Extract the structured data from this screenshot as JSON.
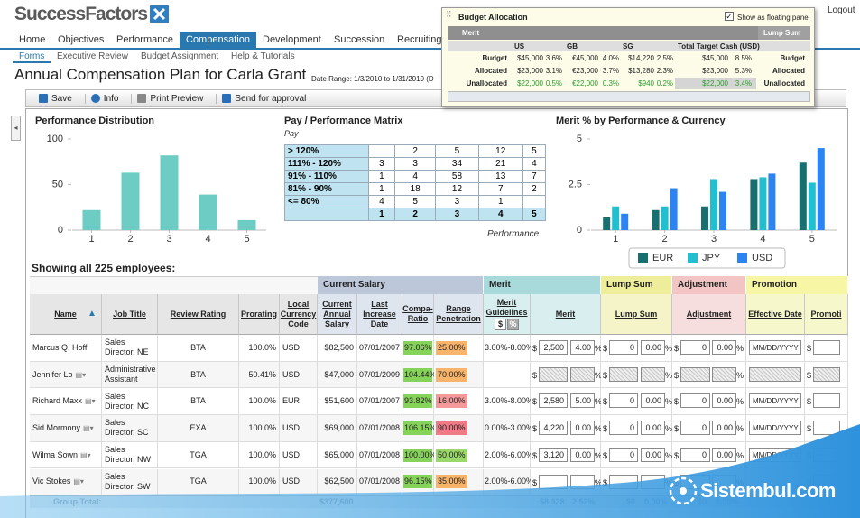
{
  "header": {
    "logo": "SuccessFactors",
    "logout": "Logout"
  },
  "nav": [
    {
      "label": "Home"
    },
    {
      "label": "Objectives"
    },
    {
      "label": "Performance"
    },
    {
      "label": "Compensation",
      "active": true
    },
    {
      "label": "Development"
    },
    {
      "label": "Succession"
    },
    {
      "label": "Recruiting"
    }
  ],
  "subnav": [
    {
      "label": "Forms",
      "active": true
    },
    {
      "label": "Executive Review"
    },
    {
      "label": "Budget Assignment"
    },
    {
      "label": "Help & Tutorials"
    }
  ],
  "page": {
    "title": "Annual Compensation Plan for Carla Grant",
    "date_range": "Date Range: 1/3/2010 to 1/31/2010 (D"
  },
  "toolbar": [
    "Save",
    "Info",
    "Print Preview",
    "Send for approval"
  ],
  "budget_panel": {
    "title": "Budget Allocation",
    "floating_label": "Show as floating panel",
    "section": "Merit",
    "lump_section": "Lump Sum",
    "columns": [
      "US",
      "GB",
      "SG",
      "Total Target Cash (USD)"
    ],
    "rows": [
      {
        "label": "Budget",
        "cells": [
          "$45,000",
          "3.6%",
          "€45,000",
          "4.0%",
          "$14,220",
          "2.5%",
          "$45,000",
          "8.5%"
        ],
        "lump": "Budget"
      },
      {
        "label": "Allocated",
        "cells": [
          "$23,000",
          "3.1%",
          "€23,000",
          "3.7%",
          "$13,280",
          "2.3%",
          "$23,000",
          "5.3%"
        ],
        "lump": "Allocated"
      },
      {
        "label": "Unallocated",
        "cells": [
          "$22,000",
          "0.5%",
          "€22,000",
          "0.3%",
          "$940",
          "0.2%",
          "$22,000",
          "3.4%"
        ],
        "lump": "Unallocated",
        "color": "#2a9a2a"
      }
    ]
  },
  "chart_data": [
    {
      "type": "bar",
      "title": "Performance Distribution",
      "categories": [
        "1",
        "2",
        "3",
        "4",
        "5"
      ],
      "values": [
        22,
        63,
        82,
        39,
        11
      ],
      "color": "#6dcdc5",
      "ylim": [
        0,
        100
      ],
      "yticks": [
        0,
        50,
        100
      ]
    },
    {
      "type": "grouped_bar",
      "title": "Merit % by Performance & Currency",
      "categories": [
        "1",
        "2",
        "3",
        "4",
        "5"
      ],
      "ylim": [
        0,
        5
      ],
      "yticks": [
        0,
        2.5,
        5
      ],
      "series": [
        {
          "name": "EUR",
          "color": "#17706f",
          "values": [
            0.7,
            1.1,
            1.3,
            2.8,
            3.7
          ]
        },
        {
          "name": "JPY",
          "color": "#22bfd0",
          "values": [
            1.3,
            1.3,
            2.8,
            2.9,
            2.6
          ]
        },
        {
          "name": "USD",
          "color": "#2c83f2",
          "values": [
            0.9,
            2.3,
            2.1,
            3.1,
            4.5
          ]
        }
      ]
    }
  ],
  "matrix": {
    "title": "Pay / Performance Matrix",
    "y_label": "Pay",
    "x_label": "Performance",
    "columns": [
      1,
      2,
      3,
      4,
      5
    ],
    "rows": [
      {
        "label": "> 120%",
        "cells": [
          null,
          2,
          5,
          12,
          5
        ]
      },
      {
        "label": "111% - 120%",
        "cells": [
          3,
          3,
          34,
          21,
          4
        ]
      },
      {
        "label": "91% - 110%",
        "cells": [
          1,
          4,
          58,
          13,
          7
        ]
      },
      {
        "label": "81% - 90%",
        "cells": [
          1,
          18,
          12,
          7,
          2
        ]
      },
      {
        "label": "<= 80%",
        "cells": [
          4,
          5,
          3,
          1,
          null
        ]
      }
    ]
  },
  "grid": {
    "caption": "Showing all 225 employees:",
    "currency_symbol": "$",
    "percent_symbol": "%",
    "groups": [
      "Current Salary",
      "Merit",
      "Lump Sum",
      "Adjustment",
      "Promotion"
    ],
    "columns": [
      "Name",
      "Job Title",
      "Review Rating",
      "Prorating",
      "Local Currency Code",
      "Current Annual Salary",
      "Last Increase Date",
      "Compa-Ratio",
      "Range Penetration",
      "Merit Guidelines",
      "Merit",
      "Lump Sum",
      "Adjustment",
      "Effective Date",
      "Promoti"
    ],
    "rows": [
      {
        "name": "Marcus Q. Hoff",
        "job": "Sales Director, NE",
        "rating": "BTA",
        "prorating": "100.0%",
        "currency": "USD",
        "salary": "$82,500",
        "last_increase": "07/01/2007",
        "compa": "97.06%",
        "compa_color": "#86d35a",
        "range": "25.00%",
        "range_color": "#f8b46a",
        "guidelines": "3.00%-8.00%",
        "merit_amt": "2,500",
        "merit_pct": "4.00",
        "lump_amt": "0",
        "lump_pct": "0.00",
        "adj_amt": "0",
        "adj_pct": "0.00",
        "eff_date": "MM/DD/YYYY"
      },
      {
        "name": "Jennifer Lo",
        "job": "Administrative Assistant",
        "rating": "BTA",
        "prorating": "50.41%",
        "currency": "USD",
        "salary": "$47,000",
        "last_increase": "07/01/2009",
        "compa": "104.44%",
        "compa_color": "#86d35a",
        "range": "70.00%",
        "range_color": "#f8b46a",
        "hatched": true
      },
      {
        "name": "Richard Maxx",
        "job": "Sales Director, NC",
        "rating": "BTA",
        "prorating": "100.0%",
        "currency": "EUR",
        "salary": "$51,600",
        "last_increase": "07/01/2007",
        "compa": "93.82%",
        "compa_color": "#86d35a",
        "range": "16.00%",
        "range_color": "#f49a9a",
        "guidelines": "3.00%-8.00%",
        "merit_amt": "2,580",
        "merit_pct": "5.00",
        "lump_amt": "0",
        "lump_pct": "0.00",
        "adj_amt": "0",
        "adj_pct": "0.00",
        "eff_date": "MM/DD/YYYY"
      },
      {
        "name": "Sid Mormony",
        "job": "Sales Director, SC",
        "rating": "EXA",
        "prorating": "100.0%",
        "currency": "USD",
        "salary": "$69,000",
        "last_increase": "07/01/2008",
        "compa": "106.15%",
        "compa_color": "#86d35a",
        "range": "90.00%",
        "range_color": "#f07a86",
        "guidelines": "0.00%-3.00%",
        "merit_amt": "4,220",
        "merit_pct": "0.00",
        "lump_amt": "0",
        "lump_pct": "0.00",
        "adj_amt": "0",
        "adj_pct": "0.00",
        "eff_date": "MM/DD/YYYY"
      },
      {
        "name": "Wilma Sown",
        "job": "Sales Director, NW",
        "rating": "TGA",
        "prorating": "100.0%",
        "currency": "USD",
        "salary": "$65,000",
        "last_increase": "07/01/2008",
        "compa": "100.00%",
        "compa_color": "#86d35a",
        "range": "50.00%",
        "range_color": "#9ad86a",
        "guidelines": "2.00%-6.00%",
        "merit_amt": "3,120",
        "merit_pct": "0.00",
        "lump_amt": "0",
        "lump_pct": "0.00",
        "adj_amt": "0",
        "adj_pct": "0.00",
        "eff_date": "MM/DD/YYYY"
      },
      {
        "name": "Vic Stokes",
        "job": "Sales Director, SW",
        "rating": "TGA",
        "prorating": "100.0%",
        "currency": "USD",
        "salary": "$62,500",
        "last_increase": "07/01/2008",
        "compa": "96.15%",
        "compa_color": "#86d35a",
        "range": "35.00%",
        "range_color": "#f8b46a",
        "guidelines": "2.00%-6.00%"
      }
    ],
    "total": {
      "label": "Group Total:",
      "salary": "$377,600",
      "merit_amt": "$8,328",
      "merit_pct": "2.52%",
      "lump_amt": "$0",
      "lump_pct": "0.00%",
      "adj_amt": "$0",
      "adj_pct": "0.00%"
    }
  },
  "watermark": "Sistembul.com"
}
